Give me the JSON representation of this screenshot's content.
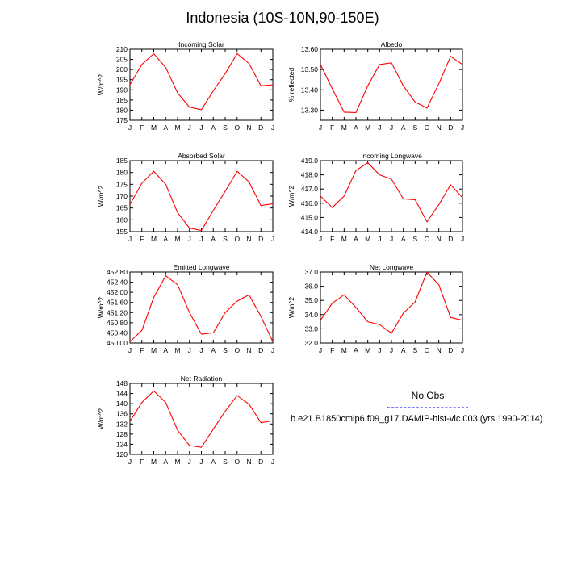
{
  "title": "Indonesia (10S-10N,90-150E)",
  "colors": {
    "model": "#ff0000",
    "obs": "#7a7aff",
    "axis": "#000000"
  },
  "legend": {
    "obs_label": "No Obs",
    "model_label": "b.e21.B1850cmip6.f09_g17.DAMIP-hist-vlc.003 (yrs 1990-2014)"
  },
  "chart_data": [
    {
      "type": "line",
      "title": "Incoming Solar",
      "ylabel": "W/m^2",
      "categories": [
        "J",
        "F",
        "M",
        "A",
        "M",
        "J",
        "J",
        "A",
        "S",
        "O",
        "N",
        "D",
        "J"
      ],
      "ylim": [
        175,
        210
      ],
      "yticks": [
        175,
        180,
        185,
        190,
        195,
        200,
        205,
        210
      ],
      "ytick_labels": [
        "175",
        "180",
        "185",
        "190",
        "195",
        "200",
        "205",
        "210"
      ],
      "series": [
        {
          "name": "b.e21.B1850cmip6.f09_g17.DAMIP-hist-vlc.003",
          "values": [
            192.5,
            202.5,
            207.8,
            201.0,
            188.5,
            181.5,
            180.2,
            189.5,
            198.0,
            207.8,
            203.0,
            192.0,
            192.5
          ]
        }
      ]
    },
    {
      "type": "line",
      "title": "Albedo",
      "ylabel": "% reflected",
      "categories": [
        "J",
        "F",
        "M",
        "A",
        "M",
        "J",
        "J",
        "A",
        "S",
        "O",
        "N",
        "D",
        "J"
      ],
      "ylim": [
        13.25,
        13.6
      ],
      "yticks": [
        13.3,
        13.4,
        13.5,
        13.6
      ],
      "ytick_labels": [
        "13.30",
        "13.40",
        "13.50",
        "13.60"
      ],
      "series": [
        {
          "name": "b.e21.B1850cmip6.f09_g17.DAMIP-hist-vlc.003",
          "values": [
            13.525,
            13.405,
            13.29,
            13.288,
            13.42,
            13.525,
            13.533,
            13.42,
            13.34,
            13.31,
            13.43,
            13.565,
            13.525
          ]
        }
      ]
    },
    {
      "type": "line",
      "title": "Absorbed Solar",
      "ylabel": "W/m^2",
      "categories": [
        "J",
        "F",
        "M",
        "A",
        "M",
        "J",
        "J",
        "A",
        "S",
        "O",
        "N",
        "D",
        "J"
      ],
      "ylim": [
        155,
        185
      ],
      "yticks": [
        155,
        160,
        165,
        170,
        175,
        180,
        185
      ],
      "ytick_labels": [
        "155",
        "160",
        "165",
        "170",
        "175",
        "180",
        "185"
      ],
      "series": [
        {
          "name": "b.e21.B1850cmip6.f09_g17.DAMIP-hist-vlc.003",
          "values": [
            166.5,
            175.5,
            180.5,
            175.0,
            163.0,
            156.5,
            155.5,
            164.0,
            172.0,
            180.5,
            176.0,
            166.0,
            166.8
          ]
        }
      ]
    },
    {
      "type": "line",
      "title": "Incoming Longwave",
      "ylabel": "W/m^2",
      "categories": [
        "J",
        "F",
        "M",
        "A",
        "M",
        "J",
        "J",
        "A",
        "S",
        "O",
        "N",
        "D",
        "J"
      ],
      "ylim": [
        414,
        419
      ],
      "yticks": [
        414,
        415,
        416,
        417,
        418,
        419
      ],
      "ytick_labels": [
        "414.0",
        "415.0",
        "416.0",
        "417.0",
        "418.0",
        "419.0"
      ],
      "series": [
        {
          "name": "b.e21.B1850cmip6.f09_g17.DAMIP-hist-vlc.003",
          "values": [
            416.5,
            415.7,
            416.5,
            418.3,
            418.85,
            418.0,
            417.7,
            416.3,
            416.25,
            414.7,
            415.9,
            417.3,
            416.4
          ]
        }
      ]
    },
    {
      "type": "line",
      "title": "Emitted Longwave",
      "ylabel": "W/m^2",
      "categories": [
        "J",
        "F",
        "M",
        "A",
        "M",
        "J",
        "J",
        "A",
        "S",
        "O",
        "N",
        "D",
        "J"
      ],
      "ylim": [
        450.0,
        452.8
      ],
      "yticks": [
        450.0,
        450.4,
        450.8,
        451.2,
        451.6,
        452.0,
        452.4,
        452.8
      ],
      "ytick_labels": [
        "450.00",
        "450.40",
        "450.80",
        "451.20",
        "451.60",
        "452.00",
        "452.40",
        "452.80"
      ],
      "series": [
        {
          "name": "b.e21.B1850cmip6.f09_g17.DAMIP-hist-vlc.003",
          "values": [
            450.05,
            450.5,
            451.8,
            452.65,
            452.3,
            451.2,
            450.35,
            450.4,
            451.2,
            451.65,
            451.9,
            451.05,
            450.05
          ]
        }
      ]
    },
    {
      "type": "line",
      "title": "Net Longwave",
      "ylabel": "W/m^2",
      "categories": [
        "J",
        "F",
        "M",
        "A",
        "M",
        "J",
        "J",
        "A",
        "S",
        "O",
        "N",
        "D",
        "J"
      ],
      "ylim": [
        32,
        37
      ],
      "yticks": [
        32,
        33,
        34,
        35,
        36,
        37
      ],
      "ytick_labels": [
        "32.0",
        "33.0",
        "34.0",
        "35.0",
        "36.0",
        "37.0"
      ],
      "series": [
        {
          "name": "b.e21.B1850cmip6.f09_g17.DAMIP-hist-vlc.003",
          "values": [
            33.6,
            34.8,
            35.4,
            34.5,
            33.5,
            33.3,
            32.7,
            34.1,
            34.9,
            37.0,
            36.1,
            33.8,
            33.6
          ]
        }
      ]
    },
    {
      "type": "line",
      "title": "Net Radiation",
      "ylabel": "W/m^2",
      "categories": [
        "J",
        "F",
        "M",
        "A",
        "M",
        "J",
        "J",
        "A",
        "S",
        "O",
        "N",
        "D",
        "J"
      ],
      "ylim": [
        120,
        148
      ],
      "yticks": [
        120,
        124,
        128,
        132,
        136,
        140,
        144,
        148
      ],
      "ytick_labels": [
        "120",
        "124",
        "128",
        "132",
        "136",
        "140",
        "144",
        "148"
      ],
      "series": [
        {
          "name": "b.e21.B1850cmip6.f09_g17.DAMIP-hist-vlc.003",
          "values": [
            133.0,
            140.5,
            145.0,
            140.5,
            129.5,
            123.5,
            122.8,
            130.0,
            137.0,
            143.2,
            139.8,
            132.5,
            133.3
          ]
        }
      ]
    }
  ]
}
